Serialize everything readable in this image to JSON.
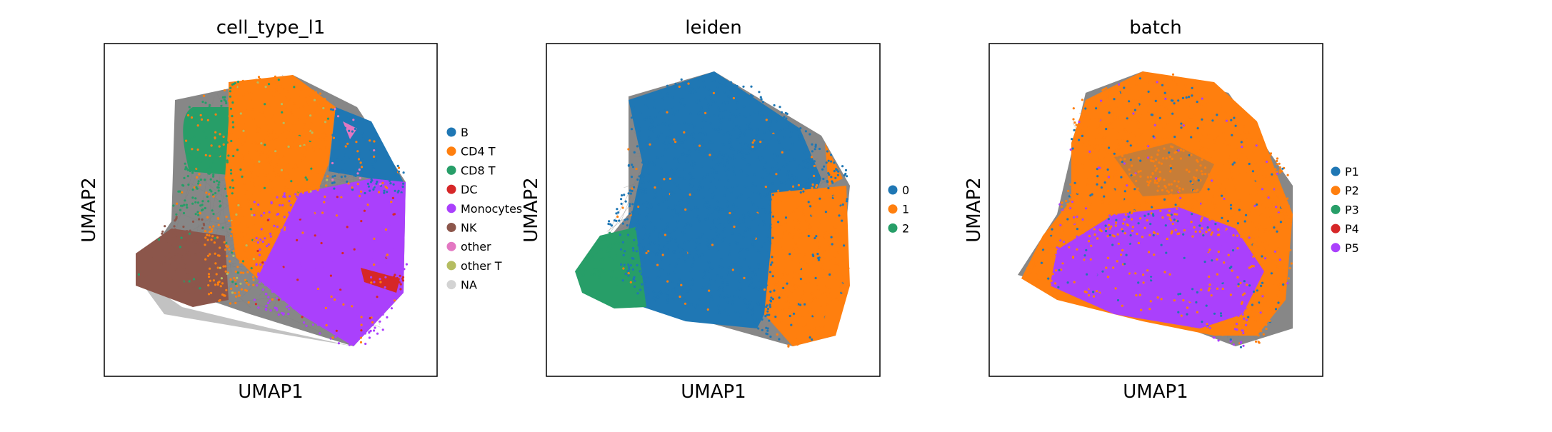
{
  "chart_data": [
    {
      "type": "scatter",
      "title": "cell_type_l1",
      "xlabel": "UMAP1",
      "ylabel": "UMAP2",
      "grid": false,
      "legend_position": "right",
      "legend": [
        {
          "label": "B",
          "color": "#1f77b4"
        },
        {
          "label": "CD4 T",
          "color": "#ff7f0e"
        },
        {
          "label": "CD8 T",
          "color": "#279e68"
        },
        {
          "label": "DC",
          "color": "#d62728"
        },
        {
          "label": "Monocytes",
          "color": "#aa40fc"
        },
        {
          "label": "NK",
          "color": "#8c564b"
        },
        {
          "label": "other",
          "color": "#e377c2"
        },
        {
          "label": "other T",
          "color": "#b5bd61"
        },
        {
          "label": "NA",
          "color": "#d3d3d3"
        }
      ]
    },
    {
      "type": "scatter",
      "title": "leiden",
      "xlabel": "UMAP1",
      "ylabel": "UMAP2",
      "grid": false,
      "legend_position": "right",
      "legend": [
        {
          "label": "0",
          "color": "#1f77b4"
        },
        {
          "label": "1",
          "color": "#ff7f0e"
        },
        {
          "label": "2",
          "color": "#279e68"
        }
      ]
    },
    {
      "type": "scatter",
      "title": "batch",
      "xlabel": "UMAP1",
      "ylabel": "UMAP2",
      "grid": false,
      "legend_position": "right",
      "legend": [
        {
          "label": "P1",
          "color": "#1f77b4"
        },
        {
          "label": "P2",
          "color": "#ff7f0e"
        },
        {
          "label": "P3",
          "color": "#279e68"
        },
        {
          "label": "P4",
          "color": "#d62728"
        },
        {
          "label": "P5",
          "color": "#aa40fc"
        }
      ]
    }
  ],
  "edge_color": "#808080"
}
